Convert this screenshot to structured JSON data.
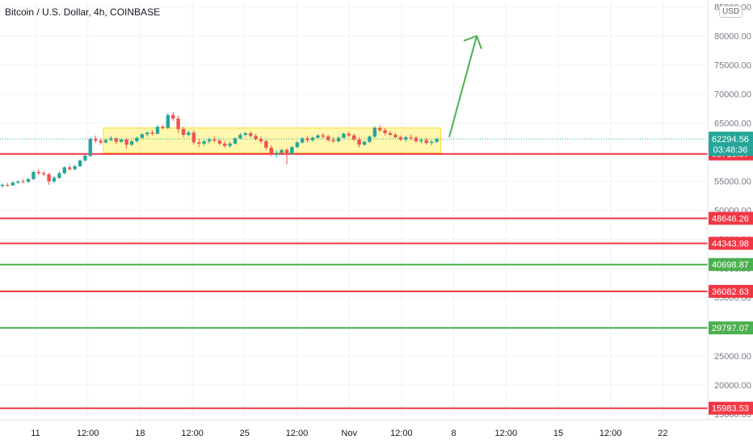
{
  "chart_data": {
    "type": "candlestick",
    "title": "Bitcoin / U.S. Dollar, 4h, COINBASE",
    "currency": "USD",
    "y_ticks": [
      "15000.00",
      "20000.00",
      "25000.00",
      "30000.00",
      "35000.00",
      "40000.00",
      "45000.00",
      "50000.00",
      "55000.00",
      "60000.00",
      "65000.00",
      "70000.00",
      "75000.00",
      "80000.00",
      "85000.00"
    ],
    "x_ticks": [
      "11",
      "12:00",
      "18",
      "12:00",
      "25",
      "12:00",
      "Nov",
      "12:00",
      "8",
      "12:00",
      "15",
      "12:00",
      "22"
    ],
    "ylim": [
      14000,
      85500
    ],
    "levels": [
      {
        "value": 59718.57,
        "label": "59718.57",
        "color": "#f23645"
      },
      {
        "value": 48646.26,
        "label": "48646.26",
        "color": "#f23645"
      },
      {
        "value": 44343.98,
        "label": "44343.98",
        "color": "#f23645"
      },
      {
        "value": 40698.87,
        "label": "40698.87",
        "color": "#4caf50"
      },
      {
        "value": 36082.63,
        "label": "36082.63",
        "color": "#f23645"
      },
      {
        "value": 29797.07,
        "label": "29797.07",
        "color": "#4caf50"
      },
      {
        "value": 15983.53,
        "label": "15983.53",
        "color": "#f23645"
      }
    ],
    "last_price": {
      "value": 62294.56,
      "label": "62294.56",
      "countdown": "03:48:36",
      "color": "#26a69a"
    },
    "range_box": {
      "low": 59900,
      "high": 64200,
      "color": "#fff176"
    },
    "projection_arrow": {
      "from": 64000,
      "to": 80000,
      "color": "#4caf50"
    },
    "candles": [
      [
        54200,
        54600,
        53900,
        54400
      ],
      [
        54400,
        54700,
        54100,
        54300
      ],
      [
        54300,
        55000,
        54200,
        54800
      ],
      [
        54800,
        55200,
        54500,
        55000
      ],
      [
        55000,
        55400,
        54700,
        54900
      ],
      [
        54900,
        55600,
        54800,
        55400
      ],
      [
        55400,
        56900,
        55200,
        56600
      ],
      [
        56600,
        57100,
        56100,
        56400
      ],
      [
        56400,
        56800,
        55900,
        56200
      ],
      [
        56200,
        56500,
        54400,
        55000
      ],
      [
        55000,
        55900,
        54700,
        55600
      ],
      [
        55600,
        56700,
        55400,
        56400
      ],
      [
        56400,
        57600,
        56200,
        57400
      ],
      [
        57400,
        57800,
        56800,
        57100
      ],
      [
        57100,
        57900,
        56900,
        57600
      ],
      [
        57600,
        58800,
        57500,
        58600
      ],
      [
        58600,
        59700,
        58400,
        59400
      ],
      [
        59400,
        62600,
        59200,
        62300
      ],
      [
        62300,
        62900,
        61600,
        62000
      ],
      [
        62000,
        62400,
        61300,
        61700
      ],
      [
        61700,
        62300,
        61500,
        62100
      ],
      [
        62100,
        62800,
        61900,
        62400
      ],
      [
        62400,
        62600,
        61400,
        61800
      ],
      [
        61800,
        62400,
        61600,
        62200
      ],
      [
        62200,
        62500,
        60600,
        61300
      ],
      [
        61300,
        62100,
        61100,
        61900
      ],
      [
        61900,
        62700,
        61700,
        62500
      ],
      [
        62500,
        63300,
        62300,
        63100
      ],
      [
        63100,
        63600,
        62700,
        63400
      ],
      [
        63400,
        63800,
        62900,
        63200
      ],
      [
        63200,
        64600,
        63100,
        64400
      ],
      [
        64400,
        64700,
        63900,
        64200
      ],
      [
        64200,
        66700,
        64000,
        66400
      ],
      [
        66400,
        66900,
        65400,
        65800
      ],
      [
        65800,
        66300,
        63300,
        64000
      ],
      [
        64000,
        64400,
        62600,
        63000
      ],
      [
        63000,
        63700,
        62700,
        63400
      ],
      [
        63400,
        63800,
        61300,
        61700
      ],
      [
        61700,
        62300,
        60900,
        61500
      ],
      [
        61500,
        62100,
        61100,
        61900
      ],
      [
        61900,
        62500,
        61500,
        62200
      ],
      [
        62200,
        62600,
        61700,
        62000
      ],
      [
        62000,
        62300,
        61200,
        61500
      ],
      [
        61500,
        62000,
        60800,
        61100
      ],
      [
        61100,
        61800,
        60800,
        61500
      ],
      [
        61500,
        62600,
        61300,
        62400
      ],
      [
        62400,
        63300,
        62200,
        63000
      ],
      [
        63000,
        63500,
        62700,
        63300
      ],
      [
        63300,
        63600,
        62500,
        62800
      ],
      [
        62800,
        63200,
        62000,
        62300
      ],
      [
        62300,
        62700,
        61500,
        61900
      ],
      [
        61900,
        62200,
        60400,
        60800
      ],
      [
        60800,
        61200,
        59300,
        59600
      ],
      [
        59600,
        60300,
        59100,
        59900
      ],
      [
        59900,
        60600,
        59500,
        60400
      ],
      [
        60400,
        60700,
        57900,
        59700
      ],
      [
        59700,
        61100,
        59600,
        60900
      ],
      [
        60900,
        61900,
        60700,
        61700
      ],
      [
        61700,
        62600,
        61500,
        62400
      ],
      [
        62400,
        62800,
        61700,
        62100
      ],
      [
        62100,
        62700,
        61800,
        62500
      ],
      [
        62500,
        63100,
        62300,
        62900
      ],
      [
        62900,
        63300,
        62400,
        62700
      ],
      [
        62700,
        63000,
        61800,
        62100
      ],
      [
        62100,
        62600,
        61600,
        61900
      ],
      [
        61900,
        62700,
        61700,
        62500
      ],
      [
        62500,
        63400,
        62400,
        63200
      ],
      [
        63200,
        63600,
        62600,
        62900
      ],
      [
        62900,
        63200,
        61900,
        62200
      ],
      [
        62200,
        62600,
        60800,
        61300
      ],
      [
        61300,
        62000,
        61100,
        61800
      ],
      [
        61800,
        62900,
        61600,
        62700
      ],
      [
        62700,
        64500,
        62500,
        64200
      ],
      [
        64200,
        64700,
        63500,
        63800
      ],
      [
        63800,
        64200,
        62900,
        63300
      ],
      [
        63300,
        63700,
        62700,
        63000
      ],
      [
        63000,
        63400,
        62300,
        62600
      ],
      [
        62600,
        62900,
        61900,
        62200
      ],
      [
        62200,
        62800,
        61800,
        62600
      ],
      [
        62600,
        63100,
        62100,
        62500
      ],
      [
        62500,
        62800,
        61600,
        61900
      ],
      [
        61900,
        62400,
        61500,
        62100
      ],
      [
        62100,
        62500,
        61300,
        61600
      ],
      [
        61600,
        62100,
        61200,
        61800
      ],
      [
        61800,
        62500,
        61600,
        62300
      ]
    ]
  }
}
